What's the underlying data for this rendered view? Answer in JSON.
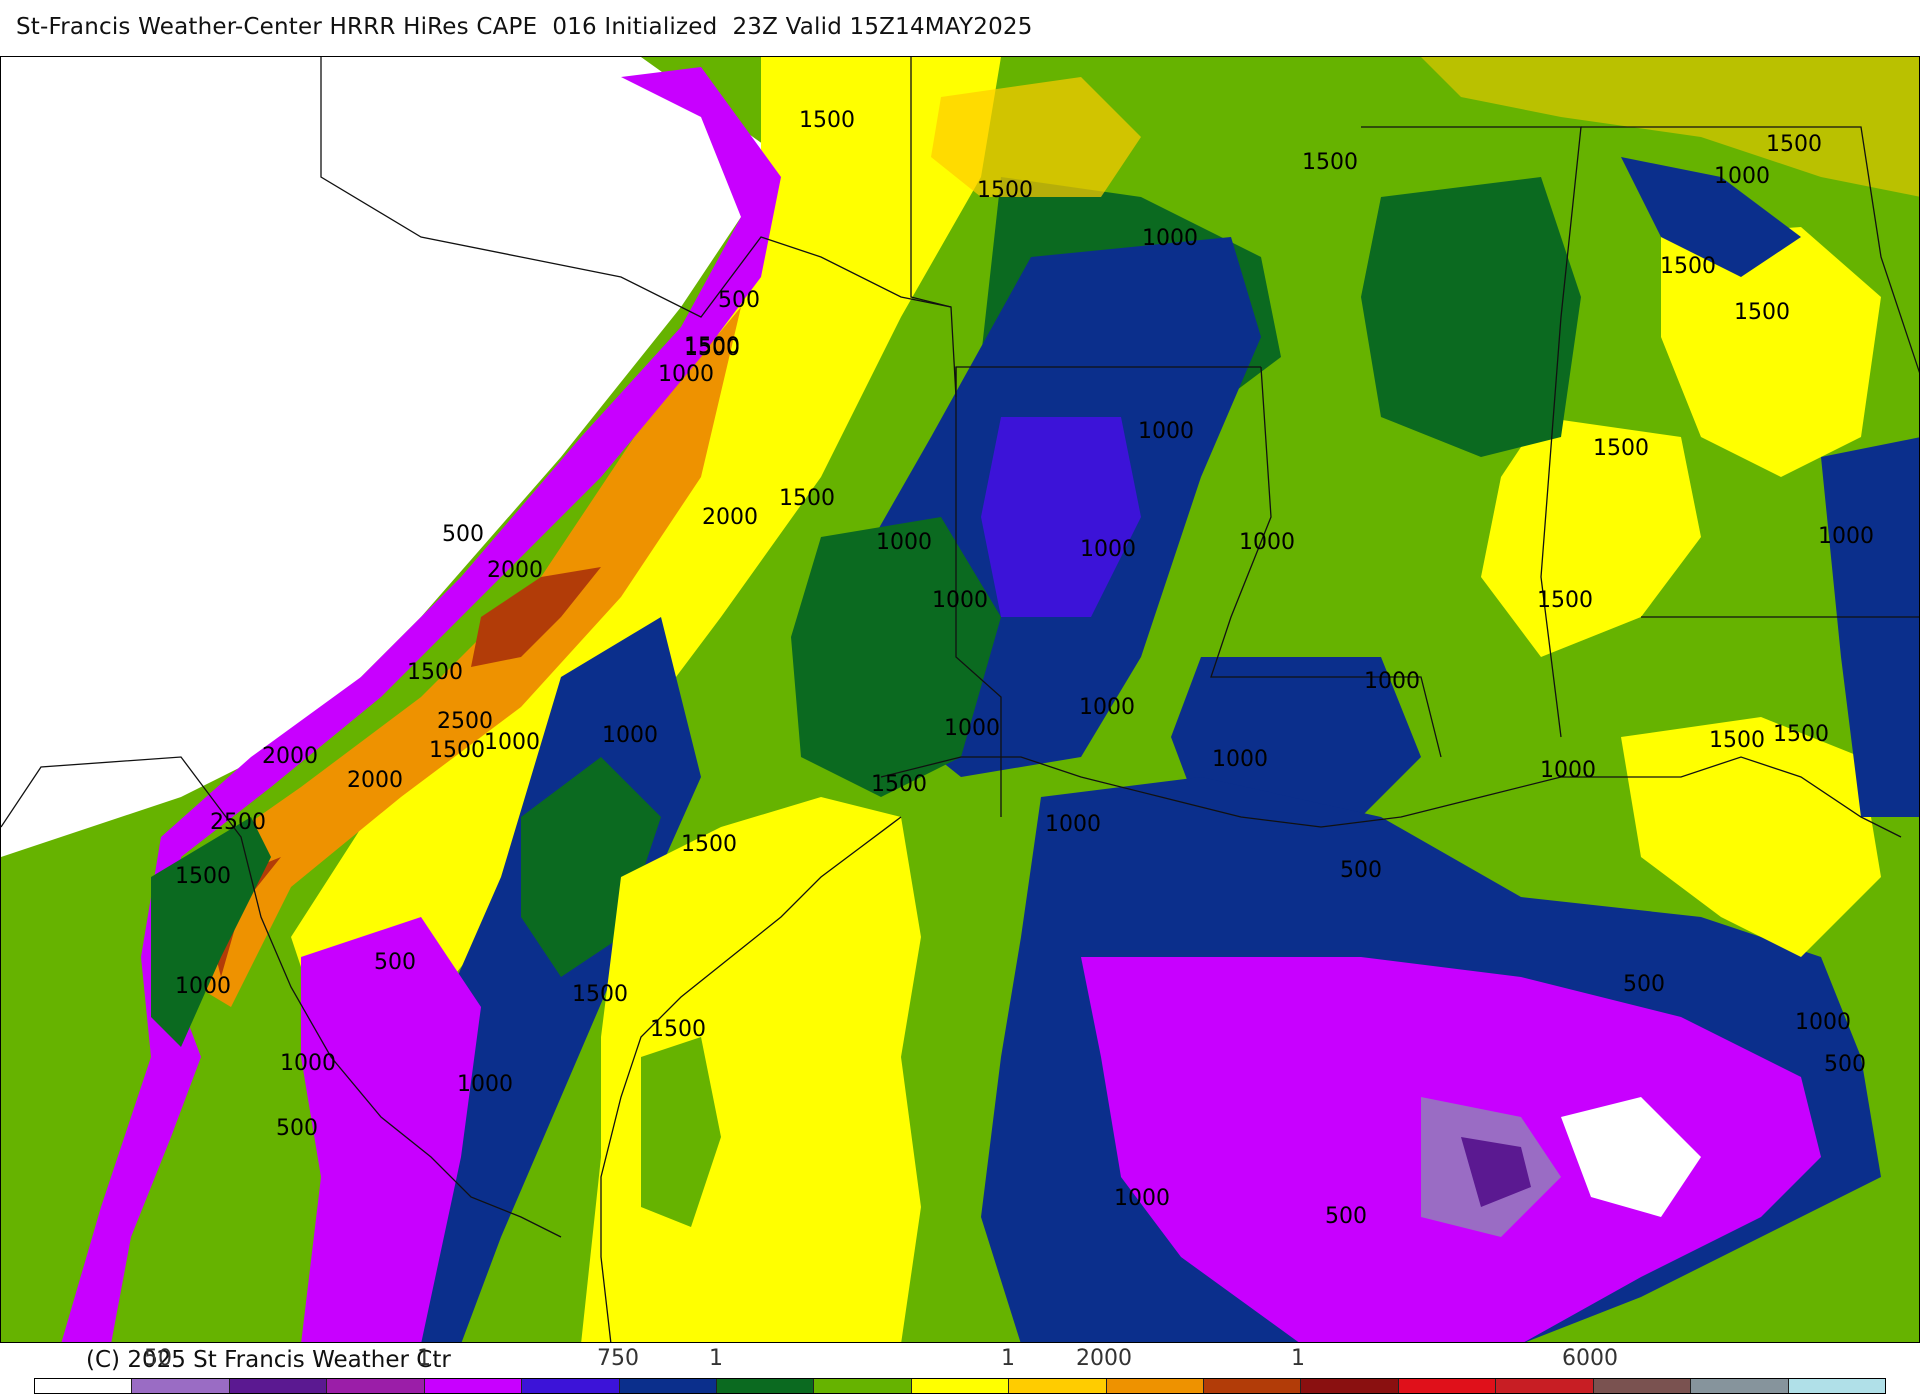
{
  "header": {
    "title": "St-Francis Weather-Center HRRR HiRes CAPE  016 Initialized  23Z Valid 15Z14MAY2025"
  },
  "footer": {
    "copyright": "(C) 2025 St Francis Weather Ctr",
    "ticks": [
      "50",
      "1",
      "750",
      "1",
      "1",
      "2000",
      "1",
      "6000"
    ]
  },
  "map": {
    "field": "CAPE",
    "palette": [
      "#ffffff",
      "#9a6cc4",
      "#5b1991",
      "#9b1ea8",
      "#c800ff",
      "#3c13d8",
      "#0b2f8c",
      "#0b6a20",
      "#66b300",
      "#ffff00",
      "#ffcc00",
      "#ee9200",
      "#b23c08",
      "#8a1010",
      "#e0101a",
      "#c81e24",
      "#7a5250",
      "#86949c",
      "#b0e0e8"
    ],
    "contour_labels": [
      "1500",
      "1500",
      "1500",
      "1500",
      "1000",
      "1000",
      "1500",
      "1500",
      "1500",
      "500",
      "1500",
      "1000",
      "1000",
      "1500",
      "500",
      "2000",
      "1500",
      "1000",
      "2000",
      "1000",
      "1000",
      "1000",
      "1500",
      "1000",
      "1000",
      "1000",
      "1500",
      "2500",
      "1500",
      "1000",
      "1000",
      "2000",
      "1500",
      "1500",
      "2000",
      "1000",
      "1000",
      "2500",
      "1500",
      "1000",
      "1500",
      "1000",
      "500",
      "500",
      "1500",
      "500",
      "1000",
      "1000",
      "1000",
      "1500",
      "500",
      "1500",
      "1000",
      "500",
      "1000",
      "500"
    ]
  }
}
